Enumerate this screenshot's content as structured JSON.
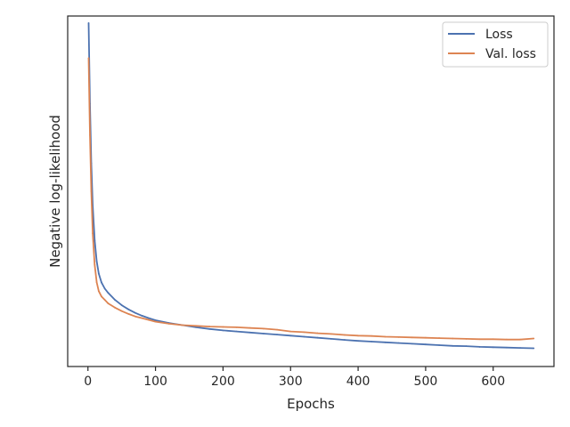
{
  "chart_data": {
    "type": "line",
    "title": "",
    "xlabel": "Epochs",
    "ylabel": "Negative log-likelihood",
    "xlim": [
      -30,
      690
    ],
    "ylim": [
      0.0,
      1.0
    ],
    "xticks": [
      0,
      100,
      200,
      300,
      400,
      500,
      600
    ],
    "xtick_labels": [
      "0",
      "100",
      "200",
      "300",
      "400",
      "500",
      "600"
    ],
    "yticks_shown": false,
    "grid": false,
    "legend_position": "top-right",
    "colors": {
      "Loss": "#4c72b0",
      "Val. loss": "#dd8452"
    },
    "series": [
      {
        "name": "Loss",
        "x": [
          1,
          3,
          5,
          7,
          10,
          13,
          16,
          20,
          25,
          30,
          40,
          50,
          60,
          70,
          80,
          90,
          100,
          120,
          140,
          160,
          180,
          200,
          220,
          240,
          260,
          280,
          300,
          320,
          340,
          360,
          380,
          400,
          420,
          440,
          460,
          480,
          500,
          520,
          540,
          560,
          580,
          600,
          620,
          640,
          660
        ],
        "values": [
          0.98,
          0.75,
          0.58,
          0.46,
          0.36,
          0.3,
          0.265,
          0.24,
          0.222,
          0.21,
          0.19,
          0.175,
          0.163,
          0.153,
          0.145,
          0.138,
          0.132,
          0.124,
          0.118,
          0.112,
          0.107,
          0.103,
          0.1,
          0.097,
          0.094,
          0.091,
          0.088,
          0.085,
          0.082,
          0.079,
          0.076,
          0.073,
          0.071,
          0.069,
          0.067,
          0.065,
          0.063,
          0.061,
          0.059,
          0.058,
          0.056,
          0.055,
          0.054,
          0.053,
          0.052
        ]
      },
      {
        "name": "Val. loss",
        "x": [
          1,
          3,
          5,
          7,
          10,
          13,
          16,
          20,
          25,
          30,
          40,
          50,
          60,
          70,
          80,
          90,
          100,
          120,
          140,
          160,
          180,
          200,
          220,
          240,
          260,
          280,
          300,
          320,
          340,
          360,
          380,
          400,
          420,
          440,
          460,
          480,
          500,
          520,
          540,
          560,
          580,
          600,
          620,
          640,
          660
        ],
        "values": [
          0.88,
          0.66,
          0.5,
          0.38,
          0.29,
          0.24,
          0.215,
          0.2,
          0.19,
          0.18,
          0.168,
          0.158,
          0.15,
          0.143,
          0.138,
          0.133,
          0.128,
          0.122,
          0.118,
          0.116,
          0.114,
          0.113,
          0.112,
          0.11,
          0.108,
          0.105,
          0.1,
          0.098,
          0.095,
          0.093,
          0.09,
          0.088,
          0.087,
          0.085,
          0.084,
          0.083,
          0.082,
          0.081,
          0.08,
          0.079,
          0.078,
          0.078,
          0.077,
          0.077,
          0.08
        ]
      }
    ]
  }
}
